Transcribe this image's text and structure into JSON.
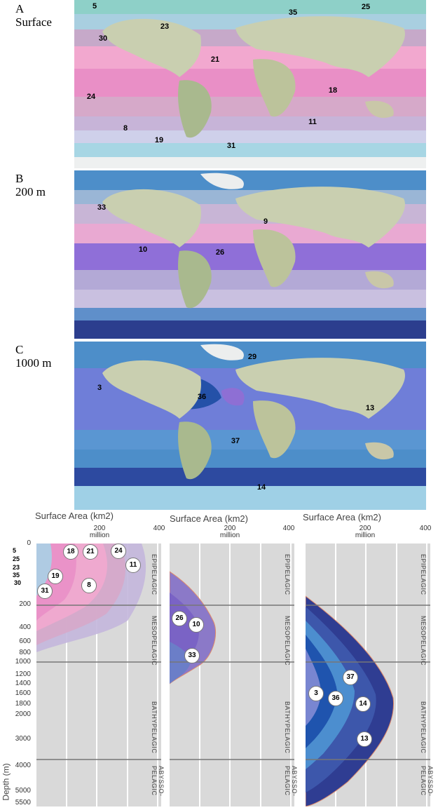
{
  "panels": [
    {
      "letter": "A",
      "name": "Surface"
    },
    {
      "letter": "B",
      "name": "200 m"
    },
    {
      "letter": "C",
      "name": "1000 m"
    }
  ],
  "map_labels": {
    "a": [
      "5",
      "35",
      "25",
      "23",
      "30",
      "21",
      "24",
      "18",
      "8",
      "11",
      "19",
      "31"
    ],
    "b": [
      "33",
      "9",
      "10",
      "26"
    ],
    "c": [
      "29",
      "3",
      "36",
      "13",
      "37",
      "14"
    ]
  },
  "chart_axis": {
    "title": "Surface Area (km2)",
    "ticks": [
      "0",
      "200",
      "400"
    ],
    "unit_tick": "million",
    "ylabel": "Depth (m)",
    "depth_ticks": [
      "0",
      "200",
      "400",
      "600",
      "800",
      "1000",
      "1200",
      "1400",
      "1600",
      "1800",
      "2000",
      "3000",
      "4000",
      "5000",
      "5500"
    ],
    "zones": [
      "EPIPELAGIC",
      "MESOPELAGIC",
      "BATHYPELAGIC",
      "ABYSSO-PELAGIC"
    ]
  },
  "chart_data": [
    {
      "type": "area",
      "title": "",
      "xlabel": "Surface Area (km2)",
      "ylabel": "Depth (m)",
      "xlim": [
        0,
        400
      ],
      "xunit": "million",
      "y": [
        "0",
        "200",
        "400",
        "600",
        "800",
        "1000"
      ],
      "series_labels": [
        "5",
        "25",
        "23",
        "35",
        "30",
        "31",
        "19",
        "18",
        "21",
        "24",
        "11",
        "8"
      ],
      "color_scheme": [
        "#e98fc6",
        "#f2a8cf",
        "#d6a9c9",
        "#c7b4d8",
        "#b3a2cb"
      ]
    },
    {
      "type": "area",
      "title": "",
      "xlabel": "Surface Area (km2)",
      "ylabel": "Depth (m)",
      "xlim": [
        0,
        400
      ],
      "xunit": "million",
      "series_labels": [
        "26",
        "10",
        "33"
      ],
      "color_scheme": [
        "#9b7fd0",
        "#7a67c0",
        "#6f7ec8"
      ]
    },
    {
      "type": "area",
      "title": "",
      "xlabel": "Surface Area (km2)",
      "ylabel": "Depth (m)",
      "xlim": [
        0,
        400
      ],
      "xunit": "million",
      "series_labels": [
        "37",
        "3",
        "36",
        "14",
        "13"
      ],
      "color_scheme": [
        "#4a8fd0",
        "#7a8fd6",
        "#1f58b0",
        "#3a4fa8",
        "#2b3a8f"
      ]
    }
  ]
}
